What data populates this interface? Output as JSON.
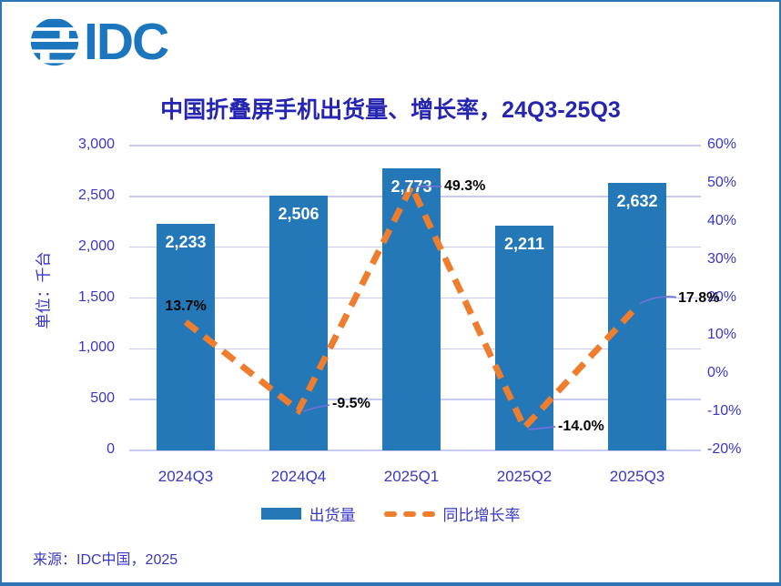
{
  "logo": {
    "text": "IDC"
  },
  "title": "中国折叠屏手机出货量、增长率，24Q3-25Q3",
  "source": "来源：IDC中国，2025",
  "chart_data": {
    "type": "combo: bar + dashed line",
    "title": "中国折叠屏手机出货量、增长率，24Q3-25Q3",
    "categories": [
      "2024Q3",
      "2024Q4",
      "2025Q1",
      "2025Q2",
      "2025Q3"
    ],
    "series": [
      {
        "name": "出货量",
        "type": "bar",
        "axis": "left",
        "color": "#2478B8",
        "values": [
          2233,
          2506,
          2773,
          2211,
          2632
        ],
        "data_labels": [
          "2,233",
          "2,506",
          "2,773",
          "2,211",
          "2,632"
        ]
      },
      {
        "name": "同比增长率",
        "type": "line",
        "line_style": "dashed",
        "axis": "right",
        "color": "#EE7D2E",
        "values": [
          13.7,
          -9.5,
          49.3,
          -14.0,
          17.8
        ],
        "data_labels": [
          "13.7%",
          "-9.5%",
          "49.3%",
          "-14.0%",
          "17.8%"
        ]
      }
    ],
    "left_axis": {
      "label": "单位：千台",
      "min": 0,
      "max": 3000,
      "step": 500,
      "tick_labels": [
        "0",
        "500",
        "1,000",
        "1,500",
        "2,000",
        "2,500",
        "3,000"
      ]
    },
    "right_axis": {
      "min": -20,
      "max": 60,
      "step": 10,
      "tick_labels": [
        "-20%",
        "-10%",
        "0%",
        "10%",
        "20%",
        "30%",
        "40%",
        "50%",
        "60%"
      ]
    },
    "legend": [
      "出货量",
      "同比增长率"
    ],
    "grid": "horizontal gridlines at every 500 units of left axis",
    "legend_position": "bottom center"
  }
}
